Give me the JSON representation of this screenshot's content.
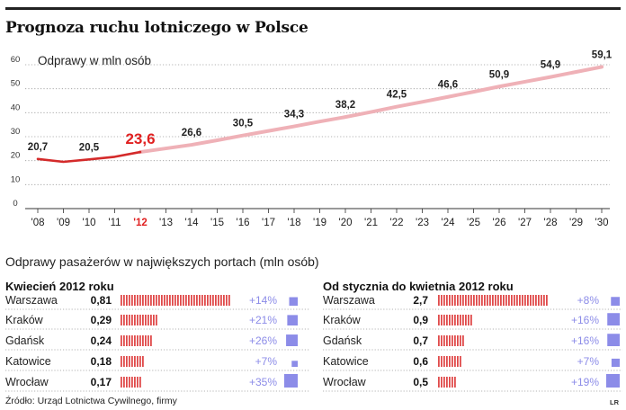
{
  "title": "Prognoza ruchu lotniczego w Polsce",
  "chart_data": [
    {
      "type": "line",
      "ylabel": "Odprawy w mln osób",
      "ylim": [
        0,
        60
      ],
      "yticks": [
        "0",
        "10",
        "20",
        "30",
        "40",
        "50",
        "60"
      ],
      "x": [
        "'08",
        "'09",
        "'10",
        "'11",
        "'12",
        "'13",
        "'14",
        "'15",
        "'16",
        "'17",
        "'18",
        "'19",
        "'20",
        "'21",
        "'22",
        "'23",
        "'24",
        "'25",
        "'26",
        "'27",
        "'28",
        "'29",
        "'30"
      ],
      "series": [
        {
          "values": [
            20.7,
            19.5,
            20.5,
            21.6,
            23.6,
            25.1,
            26.6,
            28.5,
            30.5,
            32.4,
            34.3,
            36.3,
            38.2,
            40.3,
            42.5,
            44.5,
            46.6,
            48.7,
            50.9,
            52.9,
            54.9,
            57.0,
            59.1
          ],
          "historical_until": "'12"
        }
      ],
      "data_labels": [
        {
          "x": "'08",
          "label": "20,7"
        },
        {
          "x": "'10",
          "label": "20,5"
        },
        {
          "x": "'12",
          "label": "23,6"
        },
        {
          "x": "'14",
          "label": "26,6"
        },
        {
          "x": "'16",
          "label": "30,5"
        },
        {
          "x": "'18",
          "label": "34,3"
        },
        {
          "x": "'20",
          "label": "38,2"
        },
        {
          "x": "'22",
          "label": "42,5"
        },
        {
          "x": "'24",
          "label": "46,6"
        },
        {
          "x": "'26",
          "label": "50,9"
        },
        {
          "x": "'28",
          "label": "54,9"
        },
        {
          "x": "'30",
          "label": "59,1"
        }
      ],
      "highlight_x": "'12",
      "grid": "horizontal-dotted",
      "colors": {
        "history": "#d42a2a",
        "forecast": "#efb1b7",
        "highlight": "#e02020"
      }
    },
    {
      "type": "bar",
      "title": "Kwiecień 2012 roku",
      "categories": [
        "Warszawa",
        "Kraków",
        "Gdańsk",
        "Katowice",
        "Wrocław"
      ],
      "values": [
        0.81,
        0.29,
        0.24,
        0.18,
        0.17
      ],
      "value_labels": [
        "0,81",
        "0,29",
        "0,24",
        "0,18",
        "0,17"
      ],
      "change_labels": [
        "+14%",
        "+21%",
        "+26%",
        "+7%",
        "+35%"
      ],
      "change_values": [
        14,
        21,
        26,
        7,
        35
      ],
      "colors": {
        "bar": "#e04a4a",
        "change": "#8c8ce8"
      }
    },
    {
      "type": "bar",
      "title": "Od stycznia do kwietnia 2012 roku",
      "categories": [
        "Warszawa",
        "Kraków",
        "Gdańsk",
        "Katowice",
        "Wrocław"
      ],
      "values": [
        2.7,
        0.9,
        0.7,
        0.6,
        0.5
      ],
      "value_labels": [
        "2,7",
        "0,9",
        "0,7",
        "0,6",
        "0,5"
      ],
      "change_labels": [
        "+8%",
        "+16%",
        "+16%",
        "+7%",
        "+19%"
      ],
      "change_values": [
        8,
        16,
        16,
        7,
        19
      ],
      "colors": {
        "bar": "#e04a4a",
        "change": "#8c8ce8"
      }
    }
  ],
  "ports_subtitle": "Odprawy pasażerów w największych portach (mln osób)",
  "source": "Źródło: Urząd Lotnictwa Cywilnego, firmy",
  "initials": "LR"
}
